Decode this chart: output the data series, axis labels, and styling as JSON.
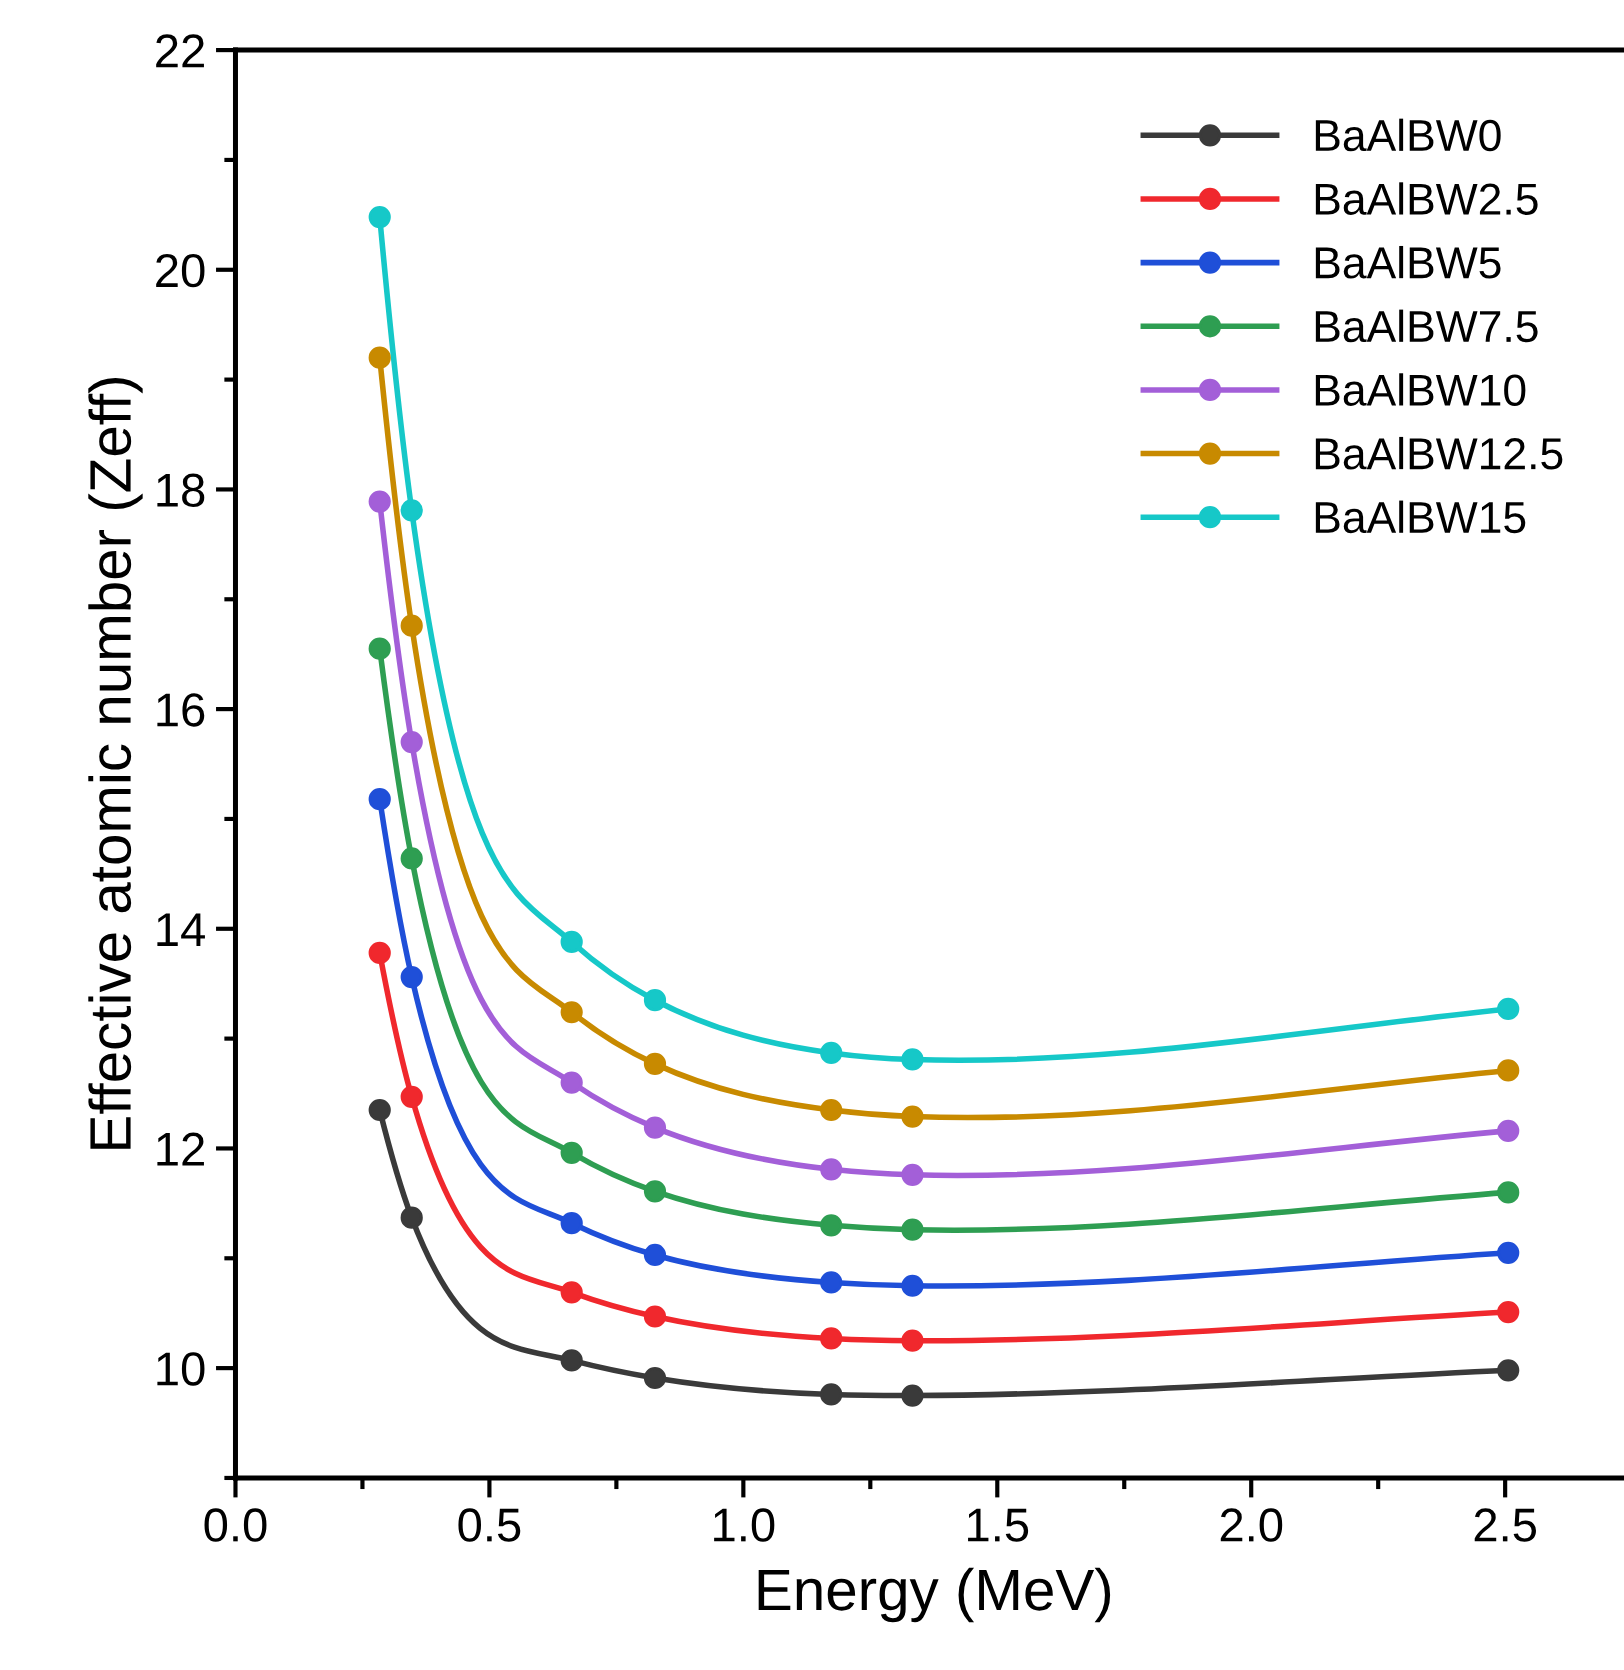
{
  "chart_data": {
    "type": "line",
    "xlabel": "Energy (MeV)",
    "ylabel": "Effective atomic number (Zeff)",
    "x": [
      0.284,
      0.347,
      0.662,
      0.826,
      1.173,
      1.333,
      2.506
    ],
    "xlim": [
      0,
      2.75
    ],
    "xticks": [
      {
        "value": 0,
        "label": "0.0"
      },
      0.5,
      {
        "value": 1,
        "label": "1.0"
      },
      1.5,
      {
        "value": 2,
        "label": "2.0"
      },
      2.5
    ],
    "ylim": [
      9,
      22
    ],
    "yticks": [
      10,
      12,
      14,
      16,
      18,
      20,
      22
    ],
    "marker": "circle",
    "line_style": "solid",
    "grid": false,
    "legend": "top right",
    "series": [
      {
        "name": "BaAlBW0",
        "color": "#3a3a3a",
        "values": [
          12.35,
          11.37,
          10.07,
          9.91,
          9.76,
          9.75,
          9.98
        ]
      },
      {
        "name": "BaAlBW2.5",
        "color": "#f0282d",
        "values": [
          13.78,
          12.47,
          10.69,
          10.47,
          10.27,
          10.25,
          10.51
        ]
      },
      {
        "name": "BaAlBW5",
        "color": "#1f4fd8",
        "values": [
          15.18,
          13.56,
          11.32,
          11.03,
          10.78,
          10.75,
          11.05
        ]
      },
      {
        "name": "BaAlBW7.5",
        "color": "#2e9e52",
        "values": [
          16.55,
          14.64,
          11.96,
          11.61,
          11.3,
          11.26,
          11.6
        ]
      },
      {
        "name": "BaAlBW10",
        "color": "#a35fd8",
        "values": [
          17.89,
          15.7,
          12.6,
          12.19,
          11.81,
          11.76,
          12.16
        ]
      },
      {
        "name": "BaAlBW12.5",
        "color": "#c88a00",
        "values": [
          19.2,
          16.76,
          13.24,
          12.77,
          12.35,
          12.29,
          12.71
        ]
      },
      {
        "name": "BaAlBW15",
        "color": "#16c8c8",
        "values": [
          20.48,
          17.81,
          13.88,
          13.35,
          12.87,
          12.81,
          13.27
        ]
      }
    ]
  }
}
